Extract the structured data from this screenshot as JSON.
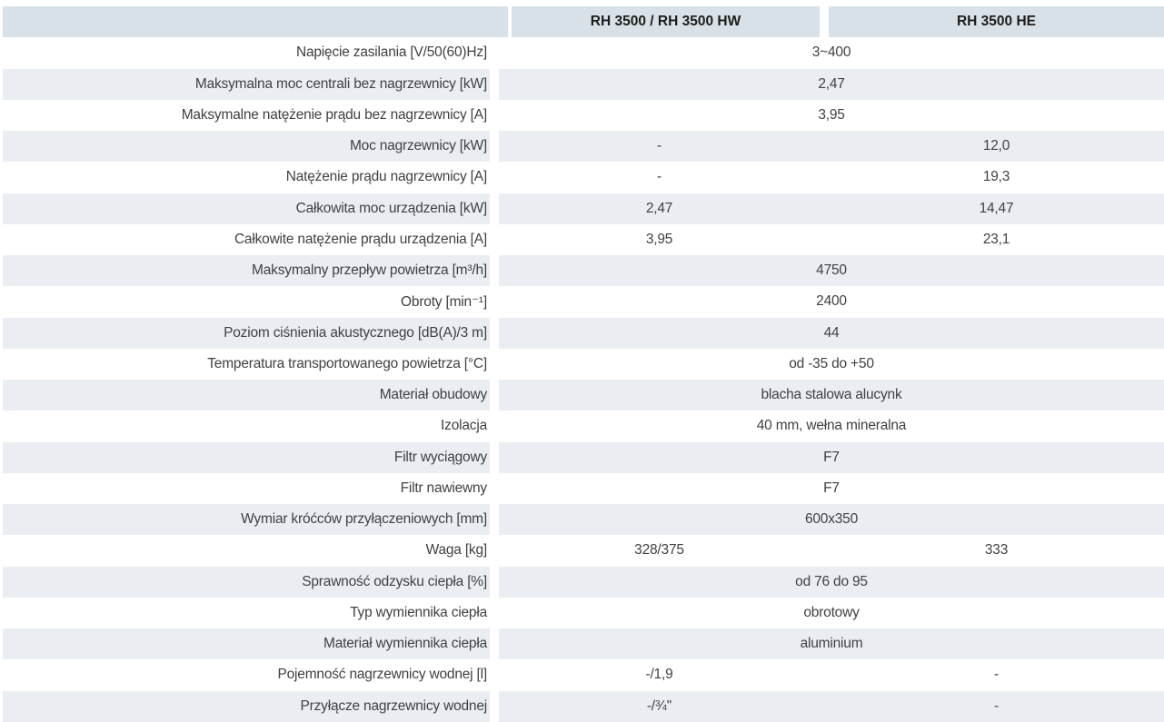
{
  "colors": {
    "header_bg": "#d9e1e8",
    "row_alt_bg": "#eaeef3",
    "body_text": "#3f4142",
    "header_text": "#1c1c1a"
  },
  "header": {
    "col1": "RH 3500 / RH 3500 HW",
    "col2": "RH 3500 HE"
  },
  "rows": [
    {
      "label": "Napięcie zasilania [V/50(60)Hz]",
      "type": "merged",
      "value": "3~400"
    },
    {
      "label": "Maksymalna moc centrali bez nagrzewnicy [kW]",
      "type": "merged",
      "value": "2,47"
    },
    {
      "label": "Maksymalne natężenie prądu bez nagrzewnicy [A]",
      "type": "merged",
      "value": "3,95"
    },
    {
      "label": "Moc nagrzewnicy [kW]",
      "type": "split",
      "values": [
        "-",
        "12,0"
      ]
    },
    {
      "label": "Natężenie prądu nagrzewnicy [A]",
      "type": "split",
      "values": [
        "-",
        "19,3"
      ]
    },
    {
      "label": "Całkowita moc urządzenia [kW]",
      "type": "split",
      "values": [
        "2,47",
        "14,47"
      ]
    },
    {
      "label": "Całkowite natężenie prądu urządzenia [A]",
      "type": "split",
      "values": [
        "3,95",
        "23,1"
      ]
    },
    {
      "label": "Maksymalny przepływ powietrza [m³/h]",
      "type": "merged",
      "value": "4750"
    },
    {
      "label": "Obroty [min⁻¹]",
      "type": "merged",
      "value": "2400"
    },
    {
      "label": "Poziom ciśnienia akustycznego [dB(A)/3 m]",
      "type": "merged",
      "value": "44"
    },
    {
      "label": "Temperatura transportowanego powietrza [°C]",
      "type": "merged",
      "value": "od -35 do +50"
    },
    {
      "label": "Materiał obudowy",
      "type": "merged",
      "value": "blacha stalowa alucynk"
    },
    {
      "label": "Izolacja",
      "type": "merged",
      "value": "40 mm, wełna mineralna"
    },
    {
      "label": "Filtr wyciągowy",
      "type": "merged",
      "value": "F7"
    },
    {
      "label": "Filtr nawiewny",
      "type": "merged",
      "value": "F7"
    },
    {
      "label": "Wymiar króćców przyłączeniowych [mm]",
      "type": "merged",
      "value": "600x350"
    },
    {
      "label": "Waga [kg]",
      "type": "split",
      "values": [
        "328/375",
        "333"
      ]
    },
    {
      "label": "Sprawność odzysku ciepła [%]",
      "type": "merged",
      "value": "od 76 do 95"
    },
    {
      "label": "Typ wymiennika ciepła",
      "type": "merged",
      "value": "obrotowy"
    },
    {
      "label": "Materiał wymiennika ciepła",
      "type": "merged",
      "value": "aluminium"
    },
    {
      "label": "Pojemność nagrzewnicy wodnej [l]",
      "type": "split",
      "values": [
        "-/1,9",
        "-"
      ]
    },
    {
      "label": "Przyłącze nagrzewnicy wodnej",
      "type": "split",
      "values": [
        "-/¾''",
        "-"
      ]
    }
  ]
}
